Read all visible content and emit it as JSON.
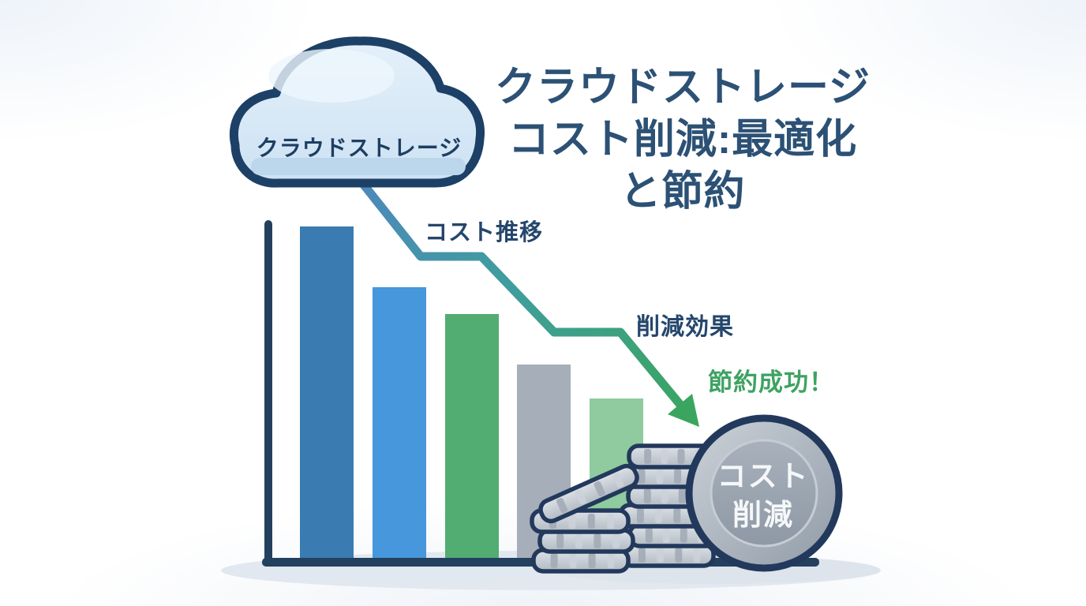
{
  "page": {
    "background": "#ffffff"
  },
  "cloud": {
    "label": "クラウドストレージ",
    "fill": "#d3e6f5",
    "outline": "#1d4066"
  },
  "title": {
    "lines": [
      "クラウドストレージ",
      "コスト削減:最適化",
      "と節約"
    ],
    "color": "#2c5175"
  },
  "annotations": {
    "cost_trend": {
      "text": "コスト推移",
      "color": "#25466c"
    },
    "reduction_effect": {
      "text": "削減効果",
      "color": "#25466c"
    },
    "saving_success": {
      "text": "節約成功！",
      "color": "#3ea263"
    }
  },
  "coin_badge": {
    "lines": [
      "コスト",
      "削減"
    ],
    "text_color": "#f5f7f9"
  },
  "chart_data": {
    "type": "bar",
    "title": "コスト推移",
    "categories": [
      "",
      "",
      "",
      "",
      ""
    ],
    "series": [
      {
        "name": "コスト",
        "values": [
          100,
          82,
          74,
          59,
          49
        ]
      }
    ],
    "value_note": "相対値（最大バー=100）、軸目盛り・数値ラベルなし",
    "bar_colors": [
      "#3a7cb1",
      "#4697dc",
      "#52ad72",
      "#a6aeb9",
      "#8fcb9e"
    ],
    "axis_color": "#24405f",
    "trend_arrow": {
      "direction": "down-right-steps",
      "start_color": "#4d88bc",
      "mid_color": "#3f9e9b",
      "end_color": "#3aa55e",
      "annotation_start": "コスト推移",
      "annotation_end": "節約成功！"
    },
    "grid": false,
    "legend": false
  }
}
